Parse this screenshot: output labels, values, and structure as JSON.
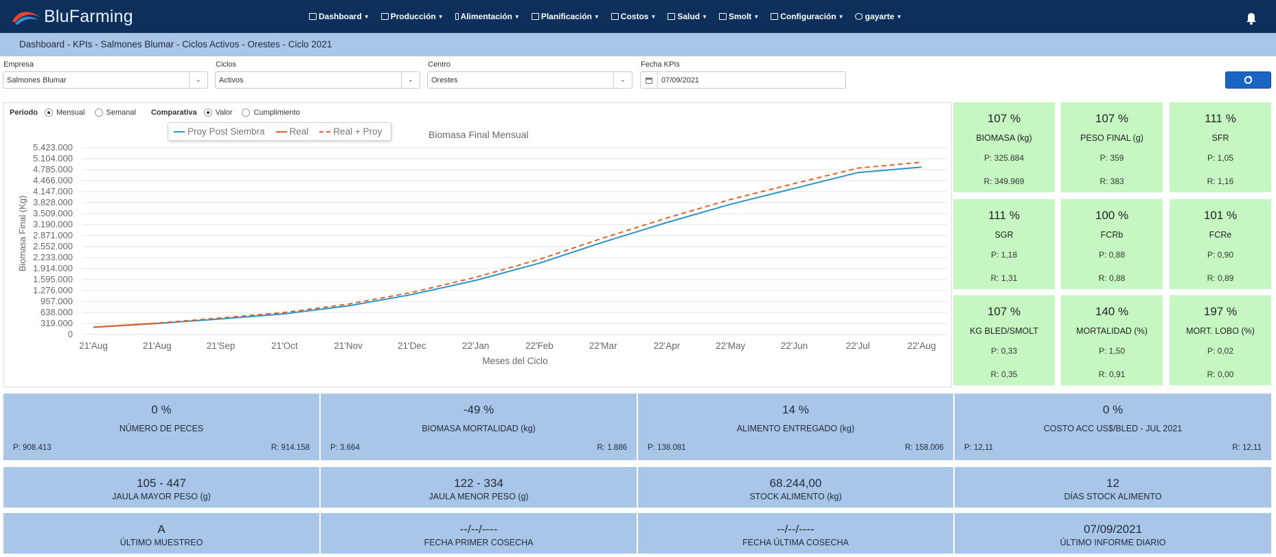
{
  "app": {
    "brand": "BluFarming"
  },
  "nav": [
    {
      "label": "Dashboard"
    },
    {
      "label": "Producción"
    },
    {
      "label": "Alimentación"
    },
    {
      "label": "Planificación"
    },
    {
      "label": "Costos"
    },
    {
      "label": "Salud"
    },
    {
      "label": "Smolt"
    },
    {
      "label": "Configuración"
    },
    {
      "label": "gayarte"
    }
  ],
  "breadcrumb": "Dashboard - KPIs - Salmones Blumar - Ciclos Activos - Orestes - Ciclo 2021",
  "filters": {
    "empresa": {
      "label": "Empresa",
      "value": "Salmones Blumar"
    },
    "ciclos": {
      "label": "Ciclos",
      "value": "Activos"
    },
    "centro": {
      "label": "Centro",
      "value": "Orestes"
    },
    "fecha": {
      "label": "Fecha KPIs",
      "value": "07/09/2021"
    }
  },
  "options": {
    "periodo": {
      "label": "Periodo",
      "choices": [
        "Mensual",
        "Semanal"
      ],
      "selected": "Mensual"
    },
    "comparativa": {
      "label": "Comparativa",
      "choices": [
        "Valor",
        "Cumplimiento"
      ],
      "selected": "Valor"
    }
  },
  "chart_data": {
    "type": "line",
    "title": "Biomasa Final Mensual",
    "xlabel": "Meses del Ciclo",
    "ylabel": "Biomasa Final (Kg)",
    "ylim": [
      0,
      5423000
    ],
    "yticks": [
      "0",
      "319.000",
      "638.000",
      "957.000",
      "1.276.000",
      "1.595.000",
      "1.914.000",
      "2.233.000",
      "2.552.000",
      "2.871.000",
      "3.190.000",
      "3.509.000",
      "3.828.000",
      "4.147.000",
      "4.466.000",
      "4.785.000",
      "5.104.000",
      "5.423.000"
    ],
    "categories": [
      "21'Aug",
      "21'Aug",
      "21'Sep",
      "21'Oct",
      "21'Nov",
      "21'Dec",
      "22'Jan",
      "22'Feb",
      "22'Mar",
      "22'Apr",
      "22'May",
      "22'Jun",
      "22'Jul",
      "22'Aug"
    ],
    "series": [
      {
        "name": "Proy Post Siembra",
        "color": "#2a93c9",
        "dash": false,
        "values": [
          210000,
          320000,
          450000,
          600000,
          830000,
          1160000,
          1570000,
          2070000,
          2680000,
          3250000,
          3780000,
          4240000,
          4700000,
          4860000
        ]
      },
      {
        "name": "Real",
        "color": "#e0602a",
        "dash": false,
        "values": [
          210000,
          330000,
          null,
          null,
          null,
          null,
          null,
          null,
          null,
          null,
          null,
          null,
          null,
          null
        ]
      },
      {
        "name": "Real + Proy",
        "color": "#e0602a",
        "dash": true,
        "values": [
          210000,
          330000,
          480000,
          640000,
          880000,
          1220000,
          1660000,
          2180000,
          2800000,
          3380000,
          3920000,
          4380000,
          4830000,
          5000000
        ]
      }
    ],
    "grid": true,
    "legend": "top-left"
  },
  "kpi_cards": [
    {
      "pct": "107 %",
      "name": "BIOMASA (kg)",
      "p": "P: 325.884",
      "r": "R: 349.969"
    },
    {
      "pct": "107 %",
      "name": "PESO FINAL (g)",
      "p": "P: 359",
      "r": "R: 383"
    },
    {
      "pct": "111 %",
      "name": "SFR",
      "p": "P: 1,05",
      "r": "R: 1,16"
    },
    {
      "pct": "111 %",
      "name": "SGR",
      "p": "P: 1,18",
      "r": "R: 1,31"
    },
    {
      "pct": "100 %",
      "name": "FCRb",
      "p": "P: 0,88",
      "r": "R: 0,88"
    },
    {
      "pct": "101 %",
      "name": "FCRe",
      "p": "P: 0,90",
      "r": "R: 0,89"
    },
    {
      "pct": "107 %",
      "name": "KG BLED/SMOLT",
      "p": "P: 0,33",
      "r": "R: 0,35"
    },
    {
      "pct": "140 %",
      "name": "MORTALIDAD (%)",
      "p": "P: 1,50",
      "r": "R: 0,91"
    },
    {
      "pct": "197 %",
      "name": "MORT. LOBO (%)",
      "p": "P: 0,02",
      "r": "R: 0,00"
    }
  ],
  "summary_row1": [
    {
      "pct": "0 %",
      "name": "NÚMERO DE PECES",
      "p": "P: 908.413",
      "r": "R: 914.158"
    },
    {
      "pct": "-49 %",
      "name": "BIOMASA MORTALIDAD (kg)",
      "p": "P: 3.664",
      "r": "R: 1.886"
    },
    {
      "pct": "14 %",
      "name": "ALIMENTO ENTREGADO (kg)",
      "p": "P: 138.081",
      "r": "R: 158.006"
    },
    {
      "pct": "0 %",
      "name": "COSTO ACC US$/BLED - JUL 2021",
      "p": "P: 12,11",
      "r": "R: 12,11"
    }
  ],
  "summary_row2": [
    {
      "value": "105 - 447",
      "name": "JAULA MAYOR PESO (g)"
    },
    {
      "value": "122 - 334",
      "name": "JAULA MENOR PESO (g)"
    },
    {
      "value": "68.244,00",
      "name": "STOCK ALIMENTO (kg)"
    },
    {
      "value": "12",
      "name": "DÍAS STOCK ALIMENTO"
    }
  ],
  "summary_row3": [
    {
      "value": "A",
      "name": "ÚLTIMO MUESTREO"
    },
    {
      "value": "--/--/----",
      "name": "FECHA PRIMER COSECHA"
    },
    {
      "value": "--/--/----",
      "name": "FECHA ÚLTIMA COSECHA"
    },
    {
      "value": "07/09/2021",
      "name": "ÚLTIMO INFORME DIARIO"
    }
  ]
}
